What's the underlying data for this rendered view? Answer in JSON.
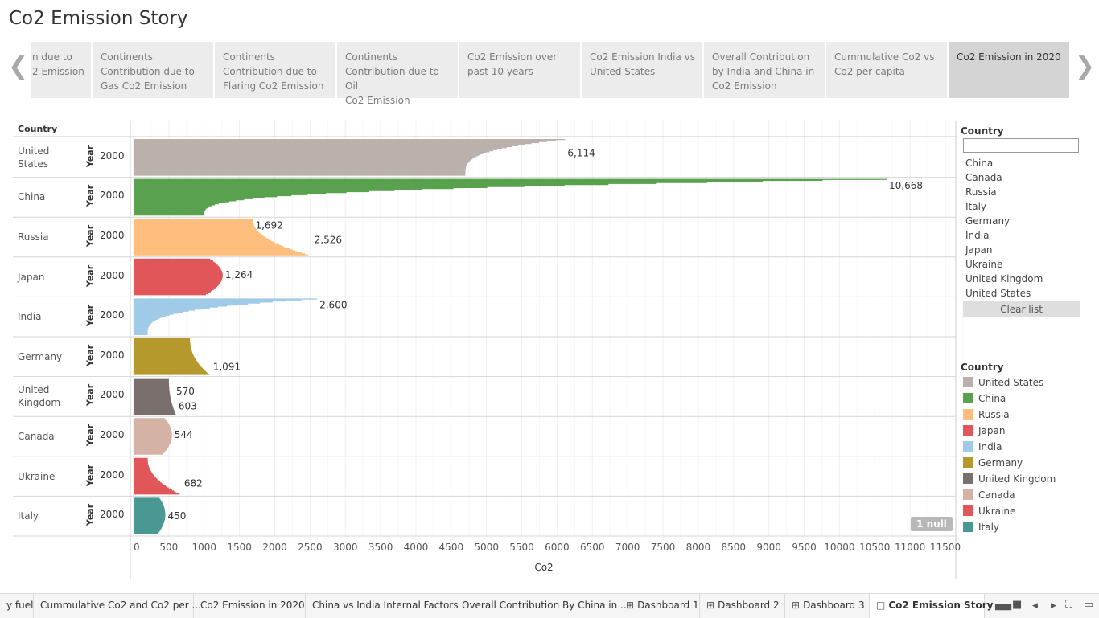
{
  "title": "Co2 Emission Story",
  "story": {
    "prev_icon": "chevron-left-icon",
    "next_icon": "chevron-right-icon",
    "points": [
      {
        "label": "n due to\n2 Emission",
        "active": false
      },
      {
        "label": "Continents\nContribution due to\nGas Co2 Emission",
        "active": false
      },
      {
        "label": "Continents\nContribution due to\nFlaring Co2 Emission",
        "active": false
      },
      {
        "label": "Continents\nContribution due to  Oil\nCo2 Emission",
        "active": false
      },
      {
        "label": "Co2 Emission over\npast 10 years",
        "active": false
      },
      {
        "label": "Co2 Emission India vs\nUnited States",
        "active": false
      },
      {
        "label": "Overall Contribution\nby India and China in\nCo2 Emission",
        "active": false
      },
      {
        "label": "Cummulative Co2 vs\nCo2 per capita",
        "active": false
      },
      {
        "label": "Co2 Emission in 2020",
        "active": true
      }
    ]
  },
  "chart_data": {
    "type": "bar",
    "orientation": "horizontal",
    "row_header": "Country",
    "sub_header": "Year",
    "year": "2000",
    "xlabel": "Co2",
    "xlim": [
      0,
      11700
    ],
    "xticks": [
      "0",
      "500",
      "1000",
      "1500",
      "2000",
      "2500",
      "3000",
      "3500",
      "4000",
      "4500",
      "5000",
      "5500",
      "6000",
      "6500",
      "7000",
      "7500",
      "8000",
      "8500",
      "9000",
      "9500",
      "10000",
      "10500",
      "11000",
      "11500"
    ],
    "rows": [
      {
        "country": "United\nStates",
        "color": "#bab0ac",
        "min": 4700,
        "max": 6114,
        "labels": [
          {
            "text": "6,114",
            "value": 6114,
            "pos": 0.38
          }
        ],
        "shape": "top-heavy"
      },
      {
        "country": "China",
        "color": "#59a14f",
        "min": 1000,
        "max": 10668,
        "labels": [
          {
            "text": "10,668",
            "value": 10668,
            "pos": 0.18
          }
        ],
        "shape": "top-heavy"
      },
      {
        "country": "Russia",
        "color": "#ffbe7d",
        "min": 1692,
        "max": 2526,
        "labels": [
          {
            "text": "1,692",
            "value": 1692,
            "pos": 0.18
          },
          {
            "text": "2,526",
            "value": 2526,
            "pos": 0.58
          }
        ],
        "shape": "bottom-heavy"
      },
      {
        "country": "Japan",
        "color": "#e15759",
        "min": 1000,
        "max": 1264,
        "labels": [
          {
            "text": "1,264",
            "value": 1264,
            "pos": 0.44
          }
        ],
        "shape": "middle"
      },
      {
        "country": "India",
        "color": "#a0cbe8",
        "min": 200,
        "max": 2600,
        "labels": [
          {
            "text": "2,600",
            "value": 2600,
            "pos": 0.18
          }
        ],
        "shape": "top-heavy"
      },
      {
        "country": "Germany",
        "color": "#b6992d",
        "min": 800,
        "max": 1091,
        "labels": [
          {
            "text": "1,091",
            "value": 1091,
            "pos": 0.78
          }
        ],
        "shape": "bottom-heavy"
      },
      {
        "country": "United\nKingdom",
        "color": "#79706e",
        "min": 500,
        "max": 603,
        "labels": [
          {
            "text": "570",
            "value": 570,
            "pos": 0.36
          },
          {
            "text": "603",
            "value": 603,
            "pos": 0.76
          }
        ],
        "shape": "bottom-heavy"
      },
      {
        "country": "Canada",
        "color": "#d4b3a6",
        "min": 400,
        "max": 544,
        "labels": [
          {
            "text": "544",
            "value": 544,
            "pos": 0.46
          }
        ],
        "shape": "middle"
      },
      {
        "country": "Ukraine",
        "color": "#e15759",
        "min": 200,
        "max": 682,
        "labels": [
          {
            "text": "682",
            "value": 682,
            "pos": 0.7
          }
        ],
        "shape": "bottom-heavy"
      },
      {
        "country": "Italy",
        "color": "#499894",
        "min": 330,
        "max": 450,
        "labels": [
          {
            "text": "450",
            "value": 450,
            "pos": 0.5
          }
        ],
        "shape": "middle"
      }
    ]
  },
  "filter": {
    "title": "Country",
    "input_value": "",
    "items": [
      "China",
      "Canada",
      "Russia",
      "Italy",
      "Germany",
      "India",
      "Japan",
      "Ukraine",
      "United Kingdom",
      "United States"
    ],
    "clear_label": "Clear list"
  },
  "legend": {
    "title": "Country",
    "items": [
      {
        "label": "United States",
        "color": "#bab0ac"
      },
      {
        "label": "China",
        "color": "#59a14f"
      },
      {
        "label": "Russia",
        "color": "#ffbe7d"
      },
      {
        "label": "Japan",
        "color": "#e15759"
      },
      {
        "label": "India",
        "color": "#a0cbe8"
      },
      {
        "label": "Germany",
        "color": "#b6992d"
      },
      {
        "label": "United Kingdom",
        "color": "#79706e"
      },
      {
        "label": "Canada",
        "color": "#d4b3a6"
      },
      {
        "label": "Ukraine",
        "color": "#e15759"
      },
      {
        "label": "Italy",
        "color": "#499894"
      }
    ]
  },
  "null_badge": "1 null",
  "tabs": [
    {
      "label": "y fuel",
      "icon": ""
    },
    {
      "label": "Cummulative Co2 and Co2 per ...",
      "icon": ""
    },
    {
      "label": "Co2 Emission in 2020",
      "icon": ""
    },
    {
      "label": "China vs India Internal Factors",
      "icon": ""
    },
    {
      "label": "Overall Contribution By China in ...",
      "icon": ""
    },
    {
      "label": "Dashboard 1",
      "icon": "dashboard-icon"
    },
    {
      "label": "Dashboard 2",
      "icon": "dashboard-icon"
    },
    {
      "label": "Dashboard 3",
      "icon": "dashboard-icon"
    },
    {
      "label": "Co2 Emission Story",
      "icon": "story-icon",
      "active": true
    }
  ],
  "controls": [
    "filmstrip-icon",
    "tab-view-icon",
    "previous-sheet-icon",
    "next-sheet-icon",
    "fullscreen-icon",
    "presentation-icon"
  ]
}
